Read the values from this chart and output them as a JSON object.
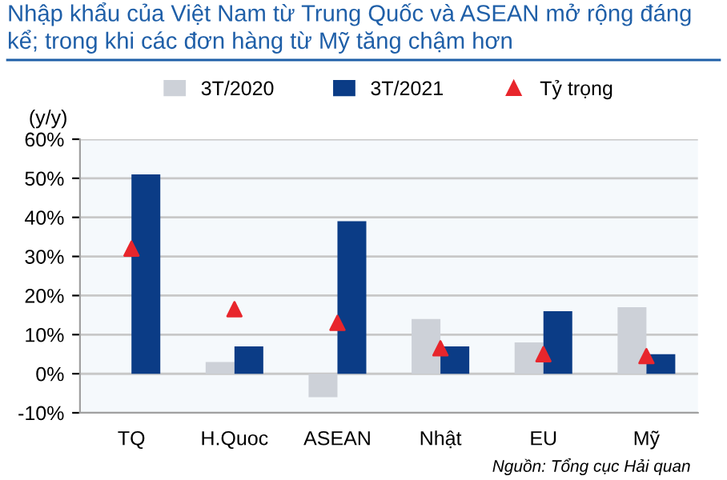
{
  "chart_data": {
    "type": "bar",
    "title": "Nhập khẩu của Việt Nam từ Trung Quốc và ASEAN mở rộng đáng kể; trong khi các đơn hàng từ Mỹ tăng chậm hơn",
    "ylabel": "(y/y)",
    "categories": [
      "TQ",
      "H.Quoc",
      "ASEAN",
      "Nhật",
      "EU",
      "Mỹ"
    ],
    "series": [
      {
        "name": "3T/2020",
        "color": "#cdd1d8",
        "values": [
          null,
          3,
          -6,
          14,
          8,
          17
        ]
      },
      {
        "name": "3T/2021",
        "color": "#0b3c86",
        "values": [
          51,
          7,
          39,
          7,
          16,
          5
        ]
      },
      {
        "name": "Tỷ trọng",
        "type": "scatter",
        "marker": "triangle",
        "color": "#e8262c",
        "values": [
          32,
          16.5,
          13,
          6.5,
          5,
          4.5
        ]
      }
    ],
    "ylim": [
      -10,
      60
    ],
    "yticks": [
      {
        "value": -10,
        "label": "-10%"
      },
      {
        "value": 0,
        "label": "0%"
      },
      {
        "value": 10,
        "label": "10%"
      },
      {
        "value": 20,
        "label": "20%"
      },
      {
        "value": 30,
        "label": "30%"
      },
      {
        "value": 40,
        "label": "40%"
      },
      {
        "value": 50,
        "label": "50%"
      },
      {
        "value": 60,
        "label": "60%"
      }
    ],
    "grid": "y",
    "legend": "top",
    "annotations": [
      "Nguồn: Tổng cục Hải quan"
    ]
  }
}
